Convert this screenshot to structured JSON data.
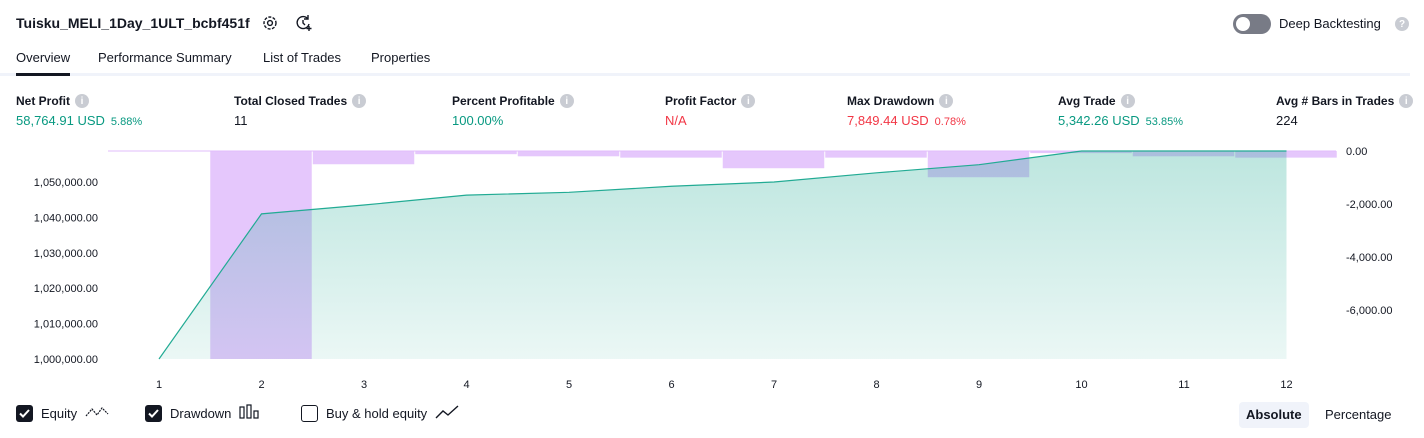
{
  "header": {
    "title": "Tuisku_MELI_1Day_1ULT_bcbf451f",
    "deep_backtesting_label": "Deep Backtesting"
  },
  "tabs": [
    {
      "label": "Overview",
      "active": true
    },
    {
      "label": "Performance Summary",
      "active": false
    },
    {
      "label": "List of Trades",
      "active": false
    },
    {
      "label": "Properties",
      "active": false
    }
  ],
  "metrics": [
    {
      "label": "Net Profit",
      "value": "58,764.91 USD",
      "sub": "5.88%",
      "color": "green"
    },
    {
      "label": "Total Closed Trades",
      "value": "11",
      "sub": "",
      "color": "neutral"
    },
    {
      "label": "Percent Profitable",
      "value": "100.00%",
      "sub": "",
      "color": "green"
    },
    {
      "label": "Profit Factor",
      "value": "N/A",
      "sub": "",
      "color": "red"
    },
    {
      "label": "Max Drawdown",
      "value": "7,849.44 USD",
      "sub": "0.78%",
      "color": "red"
    },
    {
      "label": "Avg Trade",
      "value": "5,342.26 USD",
      "sub": "53.85%",
      "color": "green"
    },
    {
      "label": "Avg # Bars in Trades",
      "value": "224",
      "sub": "",
      "color": "neutral"
    }
  ],
  "legend": {
    "equity_label": "Equity",
    "drawdown_label": "Drawdown",
    "buy_hold_label": "Buy & hold equity",
    "equity_checked": true,
    "drawdown_checked": true,
    "buy_hold_checked": false
  },
  "modes": {
    "absolute_label": "Absolute",
    "percentage_label": "Percentage",
    "active": "absolute"
  },
  "colors": {
    "equity_line": "#22ab94",
    "drawdown_bar": "#e1bdfb",
    "positive": "#089981",
    "negative": "#f23645"
  },
  "chart_data": {
    "type": "bar",
    "x": [
      1,
      2,
      3,
      4,
      5,
      6,
      7,
      8,
      9,
      10,
      11,
      12
    ],
    "series": [
      {
        "name": "Equity",
        "type": "area",
        "axis": "left",
        "values": [
          1000000,
          1041000,
          1043500,
          1046300,
          1047100,
          1048800,
          1050000,
          1052600,
          1054900,
          1058765,
          1058765,
          1058765
        ]
      },
      {
        "name": "Drawdown",
        "type": "bar",
        "axis": "right",
        "values": [
          null,
          -7849.44,
          -500,
          -120,
          -200,
          -250,
          -650,
          -250,
          -990,
          -80,
          -200,
          -250
        ]
      }
    ],
    "left_ticks": [
      "1,000,000.00",
      "1,010,000.00",
      "1,020,000.00",
      "1,030,000.00",
      "1,040,000.00",
      "1,050,000.00"
    ],
    "left_tick_values": [
      1000000,
      1010000,
      1020000,
      1030000,
      1040000,
      1050000
    ],
    "right_ticks": [
      "0.00",
      "-2,000.00",
      "-4,000.00",
      "-6,000.00"
    ],
    "right_tick_values": [
      0,
      -2000,
      -4000,
      -6000
    ],
    "left_ylim": [
      1000000,
      1058765
    ],
    "right_ylim": [
      -7849.44,
      0
    ],
    "grid": false,
    "legend": "bottom-left"
  }
}
